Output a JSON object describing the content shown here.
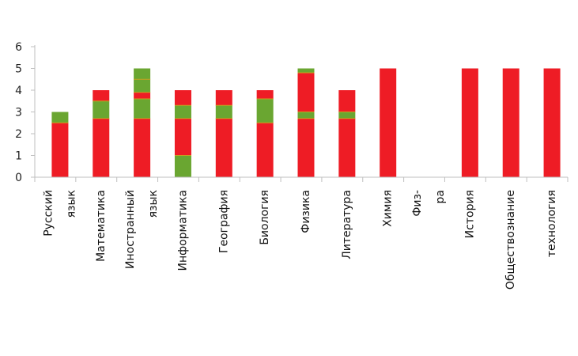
{
  "chart_data": {
    "type": "bar",
    "stacked": true,
    "title": "",
    "xlabel": "",
    "ylabel": "",
    "ylim": [
      0,
      6
    ],
    "yticks": [
      "0",
      "1",
      "2",
      "3",
      "4",
      "5",
      "6"
    ],
    "grid": false,
    "legend": "none",
    "categories": [
      [
        "Русский",
        "язык"
      ],
      [
        "Математика"
      ],
      [
        "Иностранный",
        "язык"
      ],
      [
        "Информатика"
      ],
      [
        "География"
      ],
      [
        "Биология"
      ],
      [
        "Физика"
      ],
      [
        "Литература"
      ],
      [
        "Химия"
      ],
      [
        "Физ-",
        "ра"
      ],
      [
        "История"
      ],
      [
        "Обществознание"
      ],
      [
        "технология"
      ]
    ],
    "segments": [
      [
        {
          "value": 2.5,
          "color": "red"
        },
        {
          "value": 0.5,
          "color": "green"
        }
      ],
      [
        {
          "value": 2.7,
          "color": "red"
        },
        {
          "value": 0.8,
          "color": "green"
        },
        {
          "value": 0.5,
          "color": "red"
        }
      ],
      [
        {
          "value": 2.7,
          "color": "red"
        },
        {
          "value": 0.9,
          "color": "green"
        },
        {
          "value": 0.3,
          "color": "red"
        },
        {
          "value": 0.6,
          "color": "green"
        },
        {
          "value": 0.5,
          "color": "green"
        }
      ],
      [
        {
          "value": 1.0,
          "color": "green"
        },
        {
          "value": 1.7,
          "color": "red"
        },
        {
          "value": 0.6,
          "color": "green"
        },
        {
          "value": 0.7,
          "color": "red"
        }
      ],
      [
        {
          "value": 2.7,
          "color": "red"
        },
        {
          "value": 0.6,
          "color": "green"
        },
        {
          "value": 0.7,
          "color": "red"
        }
      ],
      [
        {
          "value": 2.5,
          "color": "red"
        },
        {
          "value": 1.1,
          "color": "green"
        },
        {
          "value": 0.4,
          "color": "red"
        }
      ],
      [
        {
          "value": 2.7,
          "color": "red"
        },
        {
          "value": 0.3,
          "color": "green"
        },
        {
          "value": 1.8,
          "color": "red"
        },
        {
          "value": 0.2,
          "color": "green"
        }
      ],
      [
        {
          "value": 2.7,
          "color": "red"
        },
        {
          "value": 0.3,
          "color": "green"
        },
        {
          "value": 1.0,
          "color": "red"
        }
      ],
      [
        {
          "value": 5.0,
          "color": "red"
        }
      ],
      [],
      [
        {
          "value": 5.0,
          "color": "red"
        }
      ],
      [
        {
          "value": 5.0,
          "color": "red"
        }
      ],
      [
        {
          "value": 5.0,
          "color": "red"
        }
      ]
    ],
    "colors": {
      "red": "#ee1c25",
      "green": "#6aa631",
      "axis": "#bfbfbf",
      "stripe": "#c8a020"
    }
  }
}
